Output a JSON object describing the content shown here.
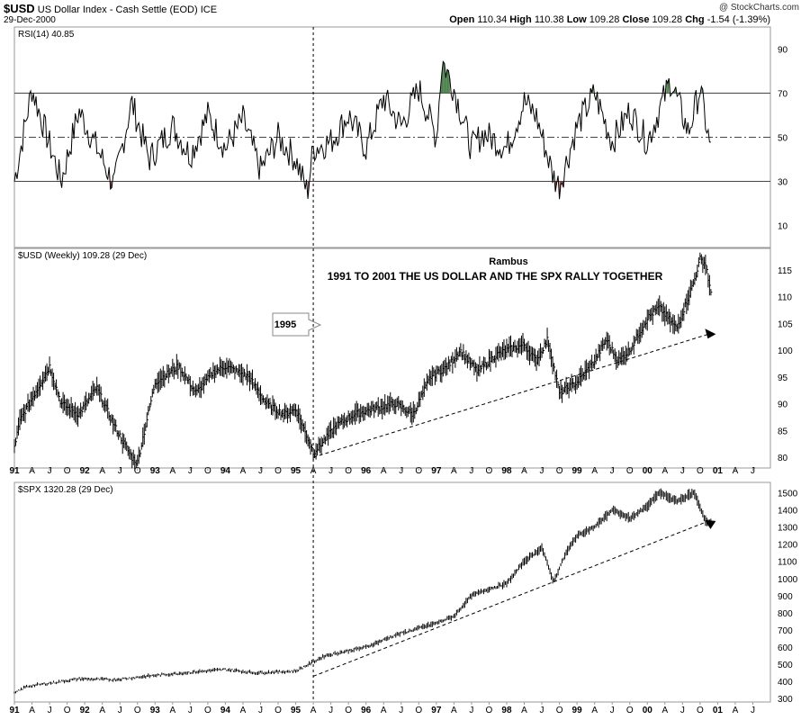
{
  "header": {
    "symbol": "$USD",
    "description": "US Dollar Index - Cash Settle (EOD)",
    "exchange": "ICE",
    "date": "29-Dec-2000",
    "watermark": "@ StockCharts.com",
    "open_label": "Open",
    "open": "110.34",
    "high_label": "High",
    "high": "110.38",
    "low_label": "Low",
    "low": "109.28",
    "close_label": "Close",
    "close": "109.28",
    "chg_label": "Chg",
    "chg": "-1.54 (-1.39%)"
  },
  "colors": {
    "accent": "#4a7f4a",
    "oversold": "#8b3a3a",
    "down_marker": "#cc0000"
  },
  "chart_data": [
    {
      "type": "line",
      "title": "RSI(14) 40.85",
      "y_ticks": [
        10,
        30,
        50,
        70,
        90
      ],
      "ylim": [
        0,
        100
      ],
      "reference_lines": [
        30,
        50,
        70
      ],
      "x": [
        "1991-01",
        "1991-04",
        "1991-06",
        "1991-09",
        "1991-12",
        "1992-04",
        "1992-06",
        "1992-09",
        "1992-12",
        "1993-04",
        "1993-07",
        "1993-10",
        "1994-01",
        "1994-04",
        "1994-07",
        "1994-10",
        "1995-01",
        "1995-03",
        "1995-04",
        "1995-07",
        "1995-10",
        "1996-01",
        "1996-04",
        "1996-07",
        "1996-10",
        "1997-01",
        "1997-02",
        "1997-04",
        "1997-07",
        "1997-09",
        "1998-01",
        "1998-04",
        "1998-06",
        "1998-09",
        "1998-10",
        "1999-01",
        "1999-04",
        "1999-07",
        "1999-10",
        "2000-01",
        "2000-05",
        "2000-08",
        "2000-10",
        "2000-12"
      ],
      "values": [
        30,
        72,
        55,
        30,
        62,
        40,
        28,
        66,
        40,
        55,
        42,
        60,
        45,
        58,
        35,
        50,
        40,
        25,
        45,
        48,
        60,
        45,
        68,
        55,
        72,
        50,
        85,
        72,
        45,
        52,
        45,
        66,
        60,
        32,
        28,
        55,
        70,
        48,
        62,
        48,
        76,
        52,
        72,
        41
      ]
    },
    {
      "type": "bar",
      "title": "$USD (Weekly) 109.28 (29 Dec)",
      "y_ticks": [
        80,
        85,
        90,
        95,
        100,
        105,
        110,
        115
      ],
      "ylim": [
        78,
        119
      ],
      "x": [
        "1991-01",
        "1991-02",
        "1991-07",
        "1991-09",
        "1991-12",
        "1992-03",
        "1992-06",
        "1992-09",
        "1992-10",
        "1993-01",
        "1993-05",
        "1993-08",
        "1993-11",
        "1994-01",
        "1994-05",
        "1994-08",
        "1994-11",
        "1995-01",
        "1995-04",
        "1995-05",
        "1995-08",
        "1995-11",
        "1996-02",
        "1996-06",
        "1996-09",
        "1996-12",
        "1997-03",
        "1997-05",
        "1997-08",
        "1997-11",
        "1998-01",
        "1998-04",
        "1998-06",
        "1998-08",
        "1998-10",
        "1999-01",
        "1999-04",
        "1999-06",
        "1999-08",
        "1999-10",
        "2000-01",
        "2000-03",
        "2000-06",
        "2000-09",
        "2000-10",
        "2000-11",
        "2000-12"
      ],
      "values": [
        82,
        87,
        97,
        90,
        88,
        93,
        86,
        80,
        79,
        94,
        97,
        92,
        96,
        97,
        95,
        90,
        88,
        89,
        81,
        82,
        86,
        88,
        89,
        90,
        88,
        95,
        97,
        100,
        96,
        99,
        100,
        101,
        98,
        102,
        92,
        94,
        98,
        102,
        98,
        100,
        106,
        108,
        104,
        113,
        117,
        116,
        109.28
      ],
      "annotations": [
        "Rambus",
        "1991 TO 2001 THE US DOLLAR AND THE SPX RALLY TOGETHER",
        "1995"
      ],
      "trendline": {
        "x": [
          "1995-04",
          "2001-01"
        ],
        "values": [
          80,
          103
        ]
      }
    },
    {
      "type": "bar",
      "title": "$SPX 1320.28 (29 Dec)",
      "y_ticks": [
        300,
        400,
        500,
        600,
        700,
        800,
        900,
        1000,
        1100,
        1200,
        1300,
        1400,
        1500
      ],
      "ylim": [
        280,
        1560
      ],
      "x": [
        "1991-01",
        "1991-03",
        "1991-12",
        "1992-06",
        "1993-01",
        "1993-06",
        "1994-01",
        "1994-06",
        "1995-01",
        "1995-06",
        "1996-01",
        "1996-06",
        "1997-01",
        "1997-04",
        "1997-07",
        "1997-10",
        "1998-01",
        "1998-04",
        "1998-07",
        "1998-09",
        "1998-11",
        "1999-01",
        "1999-04",
        "1999-07",
        "1999-10",
        "2000-01",
        "2000-03",
        "2000-06",
        "2000-09",
        "2000-11",
        "2000-12"
      ],
      "values": [
        330,
        370,
        415,
        410,
        435,
        450,
        470,
        450,
        460,
        550,
        600,
        670,
        740,
        780,
        900,
        940,
        970,
        1100,
        1180,
        980,
        1140,
        1250,
        1300,
        1400,
        1350,
        1420,
        1500,
        1450,
        1500,
        1330,
        1320.28
      ],
      "trendline": {
        "x": [
          "1995-04",
          "2001-01"
        ],
        "values": [
          430,
          1335
        ]
      }
    }
  ],
  "x_axis_labels": [
    {
      "t": "1991-01",
      "label": "91",
      "bold": true
    },
    {
      "t": "1991-04",
      "label": "A"
    },
    {
      "t": "1991-07",
      "label": "J"
    },
    {
      "t": "1991-10",
      "label": "O"
    },
    {
      "t": "1992-01",
      "label": "92",
      "bold": true
    },
    {
      "t": "1992-04",
      "label": "A"
    },
    {
      "t": "1992-07",
      "label": "J"
    },
    {
      "t": "1992-10",
      "label": "O"
    },
    {
      "t": "1993-01",
      "label": "93",
      "bold": true
    },
    {
      "t": "1993-04",
      "label": "A"
    },
    {
      "t": "1993-07",
      "label": "J"
    },
    {
      "t": "1993-10",
      "label": "O"
    },
    {
      "t": "1994-01",
      "label": "94",
      "bold": true
    },
    {
      "t": "1994-04",
      "label": "A"
    },
    {
      "t": "1994-07",
      "label": "J"
    },
    {
      "t": "1994-10",
      "label": "O"
    },
    {
      "t": "1995-01",
      "label": "95",
      "bold": true
    },
    {
      "t": "1995-04",
      "label": "A"
    },
    {
      "t": "1995-07",
      "label": "J"
    },
    {
      "t": "1995-10",
      "label": "O"
    },
    {
      "t": "1996-01",
      "label": "96",
      "bold": true
    },
    {
      "t": "1996-04",
      "label": "A"
    },
    {
      "t": "1996-07",
      "label": "J"
    },
    {
      "t": "1996-10",
      "label": "O"
    },
    {
      "t": "1997-01",
      "label": "97",
      "bold": true
    },
    {
      "t": "1997-04",
      "label": "A"
    },
    {
      "t": "1997-07",
      "label": "J"
    },
    {
      "t": "1997-10",
      "label": "O"
    },
    {
      "t": "1998-01",
      "label": "98",
      "bold": true
    },
    {
      "t": "1998-04",
      "label": "A"
    },
    {
      "t": "1998-07",
      "label": "J"
    },
    {
      "t": "1998-10",
      "label": "O"
    },
    {
      "t": "1999-01",
      "label": "99",
      "bold": true
    },
    {
      "t": "1999-04",
      "label": "A"
    },
    {
      "t": "1999-07",
      "label": "J"
    },
    {
      "t": "1999-10",
      "label": "O"
    },
    {
      "t": "2000-01",
      "label": "00",
      "bold": true
    },
    {
      "t": "2000-04",
      "label": "A"
    },
    {
      "t": "2000-07",
      "label": "J"
    },
    {
      "t": "2000-10",
      "label": "O"
    },
    {
      "t": "2001-01",
      "label": "01",
      "bold": true
    },
    {
      "t": "2001-04",
      "label": "A"
    },
    {
      "t": "2001-07",
      "label": "J"
    }
  ],
  "vertical_marker": "1995-04"
}
